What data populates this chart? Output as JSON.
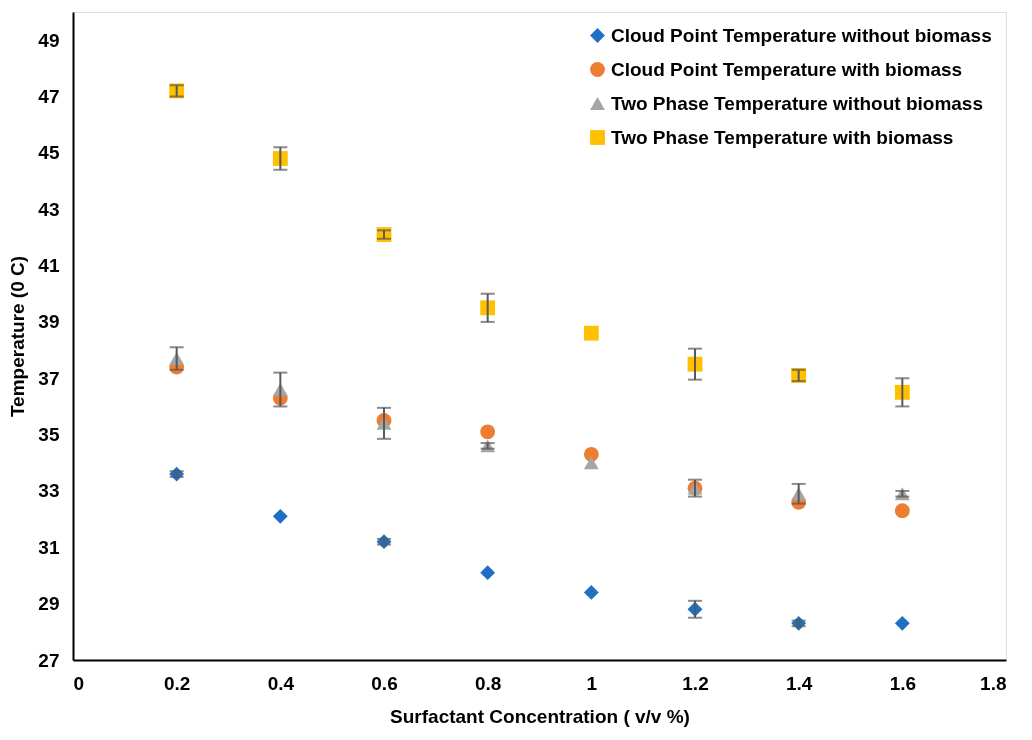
{
  "chart_data": {
    "type": "scatter",
    "xlabel": "Surfactant Concentration ( v/v %)",
    "ylabel": "Temperature (0 C)",
    "x": [
      0.2,
      0.4,
      0.6,
      0.8,
      1,
      1.2,
      1.4,
      1.6
    ],
    "xlim": [
      0,
      1.8
    ],
    "xticks": [
      0,
      0.2,
      0.4,
      0.6,
      0.8,
      1,
      1.2,
      1.4,
      1.6,
      1.8
    ],
    "ylim": [
      27,
      50
    ],
    "yticks": [
      27,
      29,
      31,
      33,
      35,
      37,
      39,
      41,
      43,
      45,
      47,
      49
    ],
    "grid": false,
    "legend": "top right",
    "series": [
      {
        "name": "Cloud Point Temperature without biomass",
        "color": "#1f6fc5",
        "marker": "diamond",
        "values": [
          33.6,
          32.1,
          31.2,
          30.1,
          29.4,
          28.8,
          28.3,
          28.3
        ],
        "errors": [
          0.1,
          null,
          0.1,
          null,
          null,
          0.3,
          0.1,
          null
        ]
      },
      {
        "name": "Cloud Point Temperature with biomass",
        "color": "#ed7d31",
        "marker": "circle",
        "values": [
          37.4,
          36.3,
          35.5,
          35.1,
          34.3,
          33.1,
          32.6,
          32.3
        ]
      },
      {
        "name": "Two Phase Temperature without biomass",
        "color": "#a5a5a5",
        "marker": "triangle",
        "values": [
          37.7,
          36.6,
          35.4,
          34.6,
          34.0,
          33.1,
          32.9,
          32.9
        ],
        "errors": [
          0.4,
          0.6,
          0.55,
          0.1,
          null,
          0.3,
          0.35,
          0.1
        ]
      },
      {
        "name": "Two Phase Temperature with biomass",
        "color": "#ffc000",
        "marker": "square",
        "values": [
          47.2,
          44.8,
          42.1,
          39.5,
          38.6,
          37.5,
          37.1,
          36.5
        ],
        "errors": [
          0.2,
          0.4,
          0.15,
          0.5,
          null,
          0.55,
          0.2,
          0.5
        ]
      }
    ]
  }
}
